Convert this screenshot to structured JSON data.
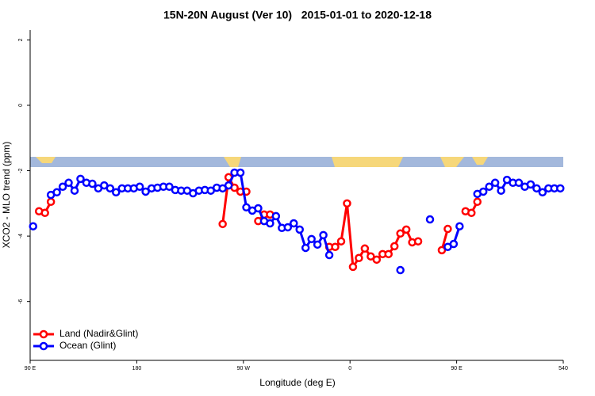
{
  "chart_data": {
    "type": "line",
    "title": "15N-20N August (Ver 10)   2015-01-01 to 2020-12-18",
    "x_label": "Longitude (deg E)",
    "y_label": "XCO2 - MLO trend (ppm)",
    "x": [
      92.5,
      97.5,
      102.5,
      107.5,
      112.5,
      117.5,
      122.5,
      127.5,
      132.5,
      137.5,
      142.5,
      147.5,
      152.5,
      157.5,
      162.5,
      167.5,
      172.5,
      177.5,
      182.5,
      187.5,
      192.5,
      197.5,
      202.5,
      207.5,
      212.5,
      217.5,
      222.5,
      227.5,
      232.5,
      237.5,
      242.5,
      247.5,
      252.5,
      257.5,
      262.5,
      267.5,
      272.5,
      277.5,
      282.5,
      287.5,
      292.5,
      297.5,
      302.5,
      307.5,
      312.5,
      317.5,
      322.5,
      327.5,
      332.5,
      337.5,
      342.5,
      347.5,
      352.5,
      357.5,
      362.5,
      367.5,
      372.5,
      377.5,
      382.5,
      387.5,
      392.5,
      397.5,
      402.5,
      407.5,
      412.5,
      417.5,
      422.5,
      427.5,
      432.5,
      437.5,
      442.5,
      447.5,
      452.5,
      457.5,
      462.5,
      467.5,
      472.5,
      477.5,
      482.5,
      487.5,
      492.5,
      497.5,
      502.5,
      507.5,
      512.5,
      517.5,
      522.5,
      527.5,
      532.5,
      537.5
    ],
    "series": [
      {
        "name": "Land (Nadir&Glint)",
        "color": "#ff0000",
        "values": [
          null,
          -3.24,
          -3.29,
          -2.95,
          null,
          null,
          null,
          null,
          null,
          null,
          null,
          null,
          null,
          null,
          null,
          null,
          null,
          null,
          null,
          null,
          null,
          null,
          null,
          null,
          null,
          null,
          null,
          null,
          null,
          null,
          null,
          null,
          -3.63,
          -2.2,
          -2.52,
          -2.64,
          -2.64,
          null,
          -3.54,
          -3.34,
          -3.34,
          null,
          null,
          null,
          null,
          null,
          null,
          null,
          null,
          null,
          -4.33,
          -4.33,
          -4.16,
          -3.0,
          -4.94,
          -4.67,
          -4.38,
          -4.62,
          -4.72,
          -4.55,
          -4.55,
          -4.31,
          -3.92,
          -3.8,
          -4.19,
          -4.16,
          null,
          null,
          null,
          -4.43,
          -3.78,
          null,
          null,
          -3.24,
          -3.29,
          -2.95,
          null,
          null,
          null,
          null,
          null,
          null,
          null,
          null,
          null,
          null,
          null,
          null,
          null,
          null
        ]
      },
      {
        "name": "Ocean (Glint)",
        "color": "#0000ff",
        "values": [
          -3.7,
          null,
          null,
          -2.74,
          -2.66,
          -2.49,
          -2.37,
          -2.61,
          -2.25,
          -2.37,
          -2.4,
          -2.54,
          -2.45,
          -2.54,
          -2.66,
          -2.54,
          -2.54,
          -2.54,
          -2.49,
          -2.64,
          -2.54,
          -2.52,
          -2.49,
          -2.49,
          -2.59,
          -2.61,
          -2.61,
          -2.69,
          -2.61,
          -2.59,
          -2.61,
          -2.52,
          -2.54,
          -2.45,
          -2.06,
          -2.06,
          -3.12,
          -3.22,
          -3.15,
          -3.54,
          -3.61,
          -3.39,
          -3.75,
          -3.73,
          -3.61,
          -3.8,
          -4.36,
          -4.09,
          -4.26,
          -3.97,
          -4.58,
          null,
          null,
          null,
          null,
          null,
          null,
          null,
          null,
          null,
          null,
          null,
          -5.04,
          null,
          null,
          null,
          null,
          -3.49,
          null,
          null,
          -4.33,
          -4.24,
          -3.7,
          null,
          null,
          -2.71,
          -2.64,
          -2.49,
          -2.37,
          -2.61,
          -2.28,
          -2.37,
          -2.37,
          -2.49,
          -2.42,
          -2.54,
          -2.66,
          -2.54,
          -2.54,
          -2.54
        ]
      }
    ],
    "xlim": [
      90,
      540
    ],
    "xticks": [
      {
        "value": 90,
        "label": "90 E"
      },
      180,
      {
        "value": 270,
        "label": "90 W"
      },
      {
        "value": 360,
        "label": "0"
      },
      {
        "value": 450,
        "label": "90 E"
      },
      540
    ],
    "ylim": [
      -7.8,
      2.3
    ],
    "yticks": [
      -6,
      -4,
      -2,
      0,
      2
    ],
    "legend": "bottom-left"
  }
}
